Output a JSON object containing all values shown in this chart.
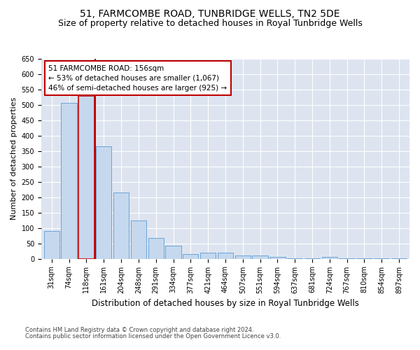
{
  "title": "51, FARMCOMBE ROAD, TUNBRIDGE WELLS, TN2 5DE",
  "subtitle": "Size of property relative to detached houses in Royal Tunbridge Wells",
  "xlabel": "Distribution of detached houses by size in Royal Tunbridge Wells",
  "ylabel": "Number of detached properties",
  "footnote1": "Contains HM Land Registry data © Crown copyright and database right 2024.",
  "footnote2": "Contains public sector information licensed under the Open Government Licence v3.0.",
  "categories": [
    "31sqm",
    "74sqm",
    "118sqm",
    "161sqm",
    "204sqm",
    "248sqm",
    "291sqm",
    "334sqm",
    "377sqm",
    "421sqm",
    "464sqm",
    "507sqm",
    "551sqm",
    "594sqm",
    "637sqm",
    "681sqm",
    "724sqm",
    "767sqm",
    "810sqm",
    "854sqm",
    "897sqm"
  ],
  "values": [
    90,
    507,
    530,
    365,
    215,
    125,
    68,
    42,
    16,
    19,
    19,
    11,
    10,
    6,
    2,
    2,
    5,
    1,
    2,
    1,
    2
  ],
  "bar_color": "#c5d8ed",
  "bar_edge_color": "#5b9bd5",
  "highlight_edge_color": "#c00000",
  "red_line_x": 2.5,
  "annotation_text": "51 FARMCOMBE ROAD: 156sqm\n← 53% of detached houses are smaller (1,067)\n46% of semi-detached houses are larger (925) →",
  "annotation_box_color": "#ffffff",
  "annotation_box_edge_color": "#c00000",
  "ylim": [
    0,
    650
  ],
  "yticks": [
    0,
    50,
    100,
    150,
    200,
    250,
    300,
    350,
    400,
    450,
    500,
    550,
    600,
    650
  ],
  "plot_bg_color": "#dde4f0",
  "fig_bg_color": "#ffffff",
  "grid_color": "#ffffff",
  "title_fontsize": 10,
  "subtitle_fontsize": 9,
  "xlabel_fontsize": 8.5,
  "ylabel_fontsize": 8,
  "tick_fontsize": 7,
  "annotation_fontsize": 7.5,
  "footnote_fontsize": 6
}
